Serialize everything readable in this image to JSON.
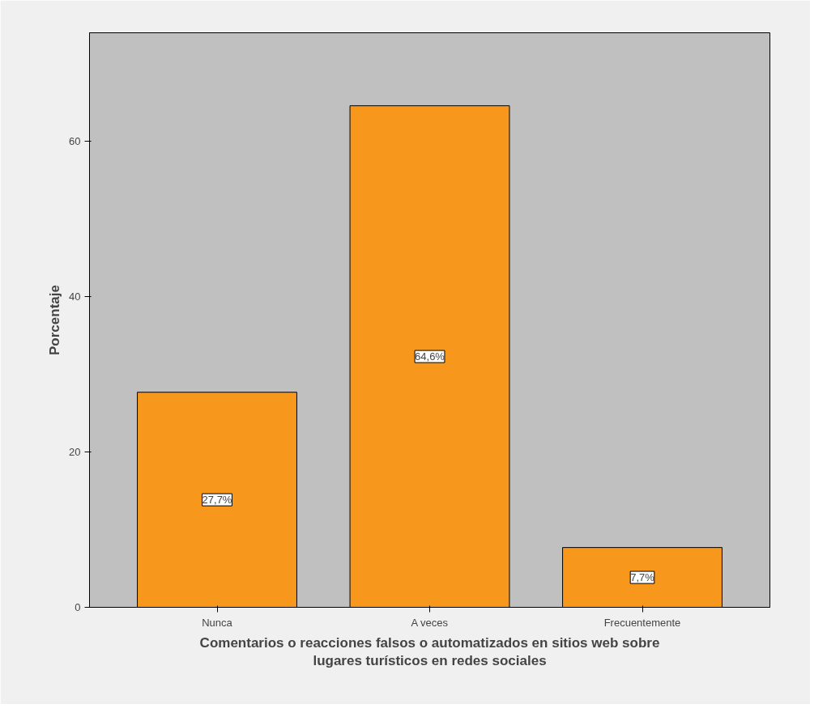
{
  "chart_data": {
    "type": "bar",
    "xlabel": "Comentarios o reacciones falsos o automatizados en sitios web sobre\nlugares turísticos en redes sociales",
    "ylabel": "Porcentaje",
    "categories": [
      "Nunca",
      "A veces",
      "Frecuentemente"
    ],
    "values": [
      27.7,
      64.6,
      7.7
    ],
    "value_labels": [
      "27,7%",
      "64,6%",
      "7,7%"
    ],
    "color": "#f7981d",
    "ylim": [
      0,
      74
    ],
    "yticks": [
      0,
      20,
      40,
      60
    ],
    "grid": false
  }
}
